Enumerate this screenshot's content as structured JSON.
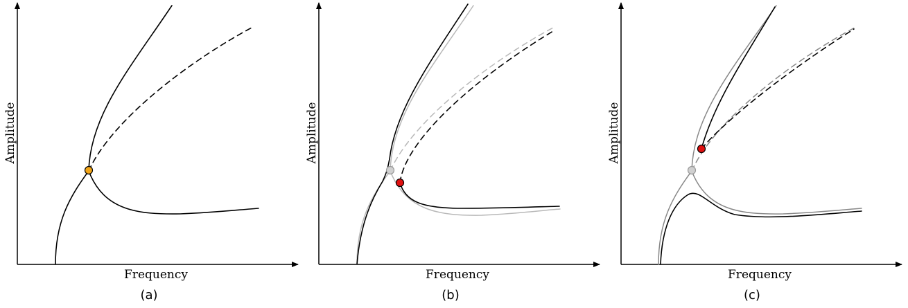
{
  "colors": {
    "primary_curve": "#000000",
    "reference_curve_b": "#b8b8b8",
    "reference_curve_c": "#888888",
    "point_orange": "#f2a416",
    "point_red": "#e01010",
    "point_gray": "#d0d0d0"
  },
  "panels": [
    {
      "label": "(a)",
      "x_axis_label": "Frequency",
      "y_axis_label": "Amplitude",
      "marked_points": [
        "orange"
      ]
    },
    {
      "label": "(b)",
      "x_axis_label": "Frequency",
      "y_axis_label": "Amplitude",
      "marked_points": [
        "gray",
        "red"
      ]
    },
    {
      "label": "(c)",
      "x_axis_label": "Frequency",
      "y_axis_label": "Amplitude",
      "marked_points": [
        "gray",
        "red"
      ]
    }
  ]
}
